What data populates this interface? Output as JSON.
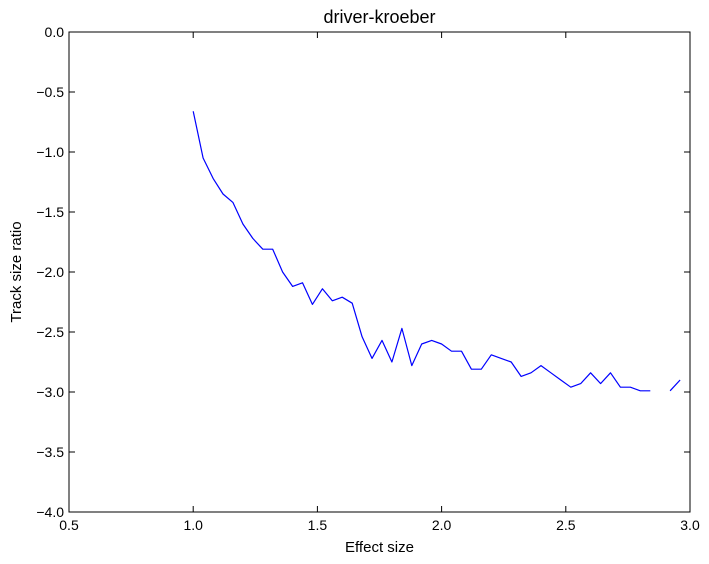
{
  "chart_data": {
    "type": "line",
    "title": "driver-kroeber",
    "xlabel": "Effect size",
    "ylabel": "Track size ratio",
    "xlim": [
      0.5,
      3.0
    ],
    "ylim": [
      -4.0,
      0.0
    ],
    "xticks": [
      0.5,
      1.0,
      1.5,
      2.0,
      2.5,
      3.0
    ],
    "xtick_labels": [
      "0.5",
      "1.0",
      "1.5",
      "2.0",
      "2.5",
      "3.0"
    ],
    "yticks": [
      0.0,
      -0.5,
      -1.0,
      -1.5,
      -2.0,
      -2.5,
      -3.0,
      -3.5,
      -4.0
    ],
    "ytick_labels": [
      "0.0",
      "−0.5",
      "−1.0",
      "−1.5",
      "−2.0",
      "−2.5",
      "−3.0",
      "−3.5",
      "−4.0"
    ],
    "grid": false,
    "series": [
      {
        "color": "#0000ff",
        "segments": [
          {
            "x": [
              1.0,
              1.04,
              1.08,
              1.12,
              1.16,
              1.2,
              1.24,
              1.28,
              1.32,
              1.36,
              1.4,
              1.44,
              1.48,
              1.52,
              1.56,
              1.6,
              1.64,
              1.68,
              1.72,
              1.76,
              1.8,
              1.84,
              1.88,
              1.92,
              1.96,
              2.0,
              2.04,
              2.08,
              2.12,
              2.16,
              2.2,
              2.24,
              2.28,
              2.32,
              2.36,
              2.4,
              2.44,
              2.48,
              2.52,
              2.56,
              2.6,
              2.64,
              2.68,
              2.72,
              2.76,
              2.8,
              2.84
            ],
            "y": [
              -0.66,
              -1.05,
              -1.22,
              -1.35,
              -1.42,
              -1.6,
              -1.72,
              -1.81,
              -1.81,
              -2.0,
              -2.12,
              -2.09,
              -2.27,
              -2.14,
              -2.24,
              -2.21,
              -2.26,
              -2.54,
              -2.72,
              -2.57,
              -2.75,
              -2.47,
              -2.78,
              -2.6,
              -2.57,
              -2.6,
              -2.66,
              -2.66,
              -2.81,
              -2.81,
              -2.69,
              -2.72,
              -2.75,
              -2.87,
              -2.84,
              -2.78,
              -2.84,
              -2.9,
              -2.96,
              -2.93,
              -2.84,
              -2.93,
              -2.84,
              -2.96,
              -2.96,
              -2.99,
              -2.99
            ]
          },
          {
            "x": [
              2.92,
              2.96
            ],
            "y": [
              -2.99,
              -2.9
            ]
          }
        ]
      }
    ]
  }
}
